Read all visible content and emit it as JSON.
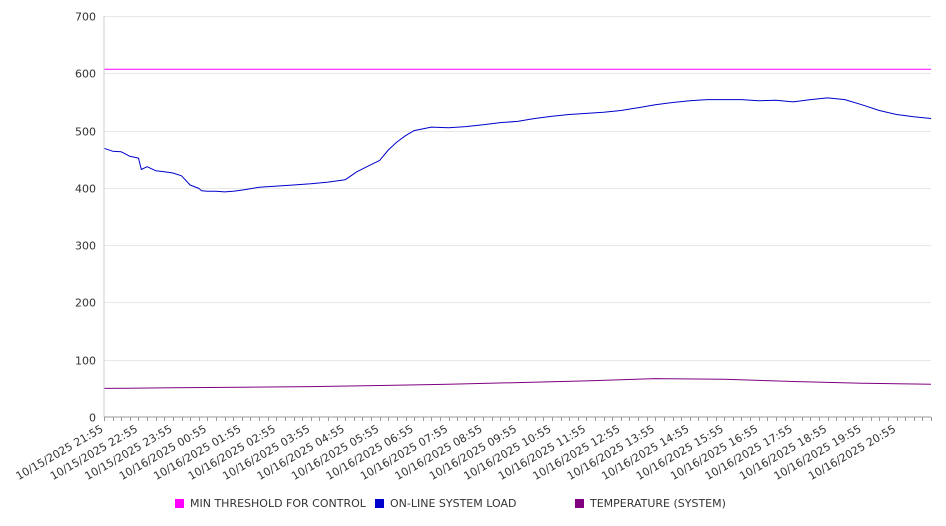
{
  "chart_data": {
    "type": "line",
    "title": "",
    "xlabel": "",
    "ylabel": "",
    "ylim": [
      0,
      700
    ],
    "yticks": [
      0,
      100,
      200,
      300,
      400,
      500,
      600,
      700
    ],
    "grid": true,
    "legend_position": "bottom",
    "x_ticks": [
      "10/15/2025 21:55",
      "10/15/2025 22:55",
      "10/15/2025 23:55",
      "10/16/2025 00:55",
      "10/16/2025 01:55",
      "10/16/2025 02:55",
      "10/16/2025 03:55",
      "10/16/2025 04:55",
      "10/16/2025 05:55",
      "10/16/2025 06:55",
      "10/16/2025 07:55",
      "10/16/2025 08:55",
      "10/16/2025 09:55",
      "10/16/2025 10:55",
      "10/16/2025 11:55",
      "10/16/2025 12:55",
      "10/16/2025 13:55",
      "10/16/2025 14:55",
      "10/16/2025 15:55",
      "10/16/2025 16:55",
      "10/16/2025 17:55",
      "10/16/2025 18:55",
      "10/16/2025 19:55",
      "10/16/2025 20:55"
    ],
    "x_end": "10/16/2025 21:55",
    "series": [
      {
        "name": "MIN THRESHOLD FOR CONTROL",
        "color": "#ff00ff",
        "x": [
          "10/15/2025 21:55",
          "10/16/2025 21:55"
        ],
        "values": [
          607,
          607
        ]
      },
      {
        "name": "ON-LINE SYSTEM LOAD",
        "color": "#0000cc",
        "x": [
          "10/15/2025 21:55",
          "10/15/2025 22:10",
          "10/15/2025 22:25",
          "10/15/2025 22:40",
          "10/15/2025 22:55",
          "10/15/2025 23:00",
          "10/15/2025 23:10",
          "10/15/2025 23:25",
          "10/15/2025 23:40",
          "10/15/2025 23:55",
          "10/16/2025 00:10",
          "10/16/2025 00:25",
          "10/16/2025 00:40",
          "10/16/2025 00:45",
          "10/16/2025 00:55",
          "10/16/2025 01:10",
          "10/16/2025 01:25",
          "10/16/2025 01:40",
          "10/16/2025 01:55",
          "10/16/2025 02:25",
          "10/16/2025 02:55",
          "10/16/2025 03:25",
          "10/16/2025 03:55",
          "10/16/2025 04:25",
          "10/16/2025 04:55",
          "10/16/2025 05:15",
          "10/16/2025 05:35",
          "10/16/2025 05:55",
          "10/16/2025 06:10",
          "10/16/2025 06:25",
          "10/16/2025 06:40",
          "10/16/2025 06:55",
          "10/16/2025 07:25",
          "10/16/2025 07:55",
          "10/16/2025 08:25",
          "10/16/2025 08:55",
          "10/16/2025 09:25",
          "10/16/2025 09:55",
          "10/16/2025 10:25",
          "10/16/2025 10:55",
          "10/16/2025 11:25",
          "10/16/2025 11:55",
          "10/16/2025 12:25",
          "10/16/2025 12:55",
          "10/16/2025 13:25",
          "10/16/2025 13:55",
          "10/16/2025 14:25",
          "10/16/2025 14:55",
          "10/16/2025 15:25",
          "10/16/2025 15:55",
          "10/16/2025 16:25",
          "10/16/2025 16:55",
          "10/16/2025 17:25",
          "10/16/2025 17:55",
          "10/16/2025 18:25",
          "10/16/2025 18:55",
          "10/16/2025 19:25",
          "10/16/2025 19:55",
          "10/16/2025 20:25",
          "10/16/2025 20:55",
          "10/16/2025 21:25",
          "10/16/2025 21:55"
        ],
        "values": [
          469,
          464,
          463,
          455,
          452,
          432,
          437,
          430,
          428,
          426,
          421,
          405,
          399,
          395,
          394,
          394,
          393,
          394,
          396,
          401,
          403,
          405,
          407,
          410,
          414,
          428,
          438,
          448,
          466,
          480,
          491,
          500,
          506,
          505,
          507,
          510,
          514,
          516,
          521,
          525,
          528,
          530,
          532,
          535,
          540,
          545,
          549,
          552,
          554,
          554,
          554,
          552,
          553,
          550,
          554,
          557,
          554,
          545,
          535,
          528,
          524,
          521
        ]
      },
      {
        "name": "TEMPERATURE (SYSTEM)",
        "color": "#800080",
        "x": [
          "10/15/2025 21:55",
          "10/15/2025 23:55",
          "10/16/2025 01:55",
          "10/16/2025 03:55",
          "10/16/2025 05:55",
          "10/16/2025 07:55",
          "10/16/2025 09:55",
          "10/16/2025 11:55",
          "10/16/2025 13:55",
          "10/16/2025 15:55",
          "10/16/2025 17:55",
          "10/16/2025 19:55",
          "10/16/2025 21:55"
        ],
        "values": [
          50,
          51,
          52,
          53,
          55,
          57,
          60,
          63,
          67,
          66,
          62,
          59,
          57
        ]
      }
    ]
  }
}
